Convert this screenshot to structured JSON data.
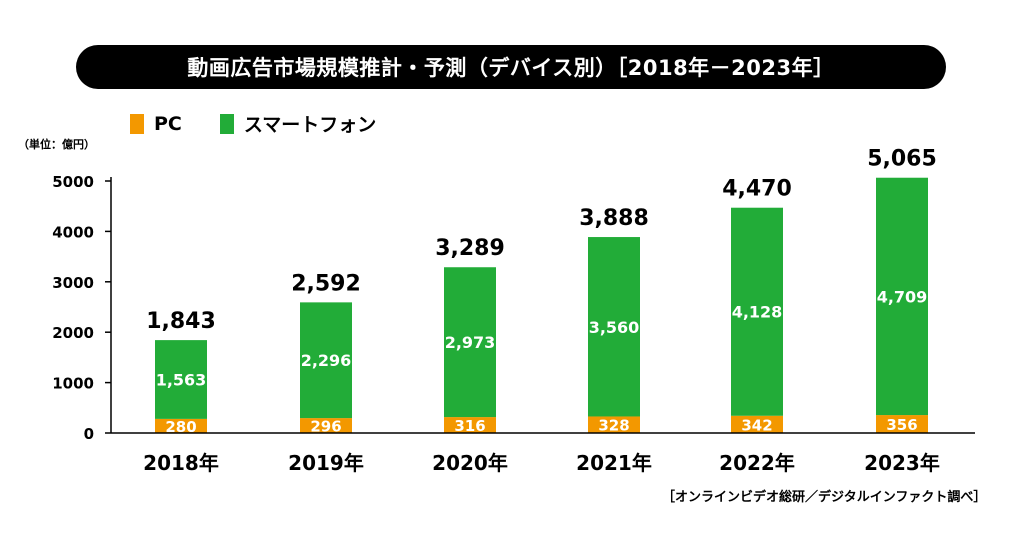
{
  "chart_data": {
    "type": "bar",
    "stacked": true,
    "title": "動画広告市場規模推計・予測（デバイス別）［2018年－2023年］",
    "unit_label": "（単位：億円）",
    "source": "［オンラインビデオ総研／デジタルインファクト調べ］",
    "categories": [
      "2018年",
      "2019年",
      "2020年",
      "2021年",
      "2022年",
      "2023年"
    ],
    "series": [
      {
        "name": "PC",
        "color": "#f39800",
        "values": [
          280,
          296,
          316,
          328,
          342,
          356
        ],
        "labels": [
          "280",
          "296",
          "316",
          "328",
          "342",
          "356"
        ]
      },
      {
        "name": "スマートフォン",
        "color": "#22ac38",
        "values": [
          1563,
          2296,
          2973,
          3560,
          4128,
          4709
        ],
        "labels": [
          "1,563",
          "2,296",
          "2,973",
          "3,560",
          "4,128",
          "4,709"
        ]
      }
    ],
    "totals": [
      1843,
      2592,
      3289,
      3888,
      4470,
      5065
    ],
    "total_labels": [
      "1,843",
      "2,592",
      "3,289",
      "3,888",
      "4,470",
      "5,065"
    ],
    "yticks": [
      "0",
      "1000",
      "2000",
      "3000",
      "4000",
      "5000"
    ],
    "ytick_values": [
      0,
      1000,
      2000,
      3000,
      4000,
      5000
    ],
    "ylim": [
      0,
      5000
    ],
    "grid": false,
    "legend_position": "top-left"
  }
}
